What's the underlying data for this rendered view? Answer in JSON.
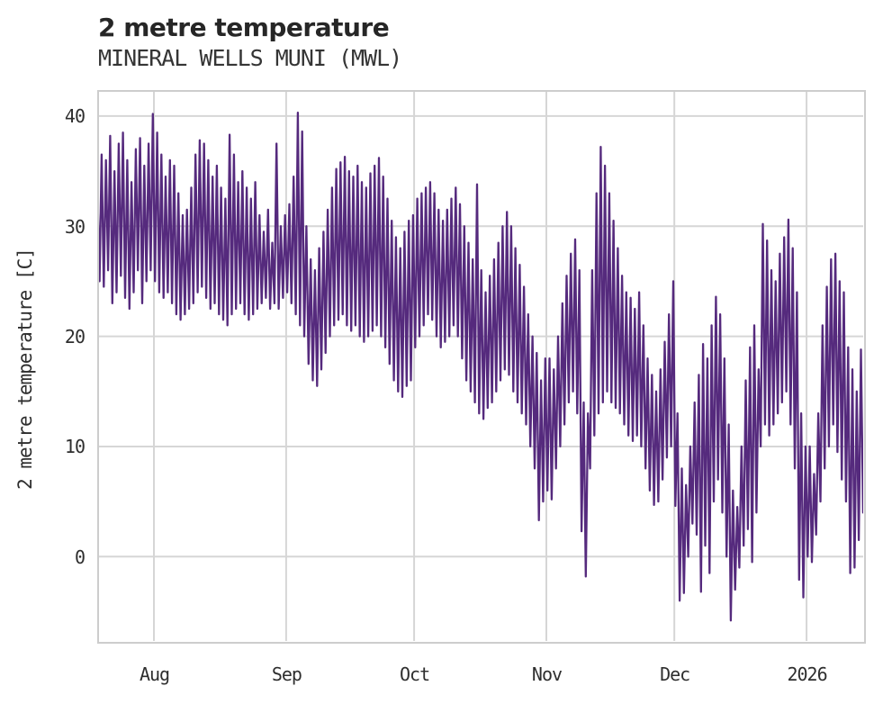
{
  "header": {
    "title": "2 metre temperature",
    "subtitle": "MINERAL WELLS MUNI (MWL)"
  },
  "chart_data": {
    "type": "line",
    "title": "2 metre temperature",
    "subtitle": "MINERAL WELLS MUNI (MWL)",
    "ylabel": "2 metre temperature [C]",
    "xlabel": "",
    "grid": true,
    "legend": "none",
    "ylim": [
      -7.66,
      42.2
    ],
    "yticks": [
      0,
      10,
      20,
      30,
      40
    ],
    "xticks": [
      {
        "label": "Aug",
        "day": 14
      },
      {
        "label": "Sep",
        "day": 45
      },
      {
        "label": "Oct",
        "day": 75
      },
      {
        "label": "Nov",
        "day": 106
      },
      {
        "label": "Dec",
        "day": 136
      },
      {
        "label": "2026",
        "day": 167
      }
    ],
    "colors": {
      "line": "#552a7d",
      "grid": "#d6d6d6",
      "frame": "#cdcdcd",
      "text": "#2e2e2e",
      "title_text": "#262626"
    },
    "daily_min": [
      24,
      25,
      24.5,
      26,
      23,
      24,
      25.5,
      23.5,
      22.5,
      24,
      26,
      23,
      25,
      26,
      25,
      24,
      23.5,
      24,
      23,
      22,
      21.5,
      22,
      22.5,
      23,
      24,
      24.5,
      23.5,
      22.5,
      23,
      22,
      21.5,
      21,
      22,
      22.5,
      23,
      22,
      21.5,
      22,
      22.5,
      23,
      23.5,
      22.5,
      23,
      22.5,
      23.5,
      24,
      23,
      22,
      21,
      20,
      17.5,
      16,
      15.5,
      17,
      18.5,
      20,
      21,
      21.5,
      22,
      21,
      20.5,
      21,
      20,
      19.5,
      20,
      20.5,
      21,
      20,
      19,
      17.5,
      16,
      15,
      14.5,
      15.5,
      16,
      19,
      20,
      21,
      22,
      21.5,
      20,
      19,
      19.5,
      20,
      21,
      20,
      18,
      16,
      15,
      14,
      13,
      12.5,
      13.5,
      14,
      15,
      16,
      17,
      16.5,
      15,
      14,
      13,
      12,
      10,
      8,
      3.3,
      5,
      6,
      5.2,
      8,
      10,
      12,
      14,
      15,
      13,
      2.3,
      -1.8,
      8,
      11,
      13,
      14,
      15,
      14,
      13.5,
      13,
      12,
      11,
      10.5,
      11,
      10,
      8,
      6,
      4.7,
      5,
      7,
      9,
      10,
      4.6,
      -4,
      -3.3,
      0,
      3,
      2,
      -3.2,
      1,
      -1.5,
      5,
      7,
      4,
      0,
      -5.8,
      -3,
      -1,
      1,
      2.5,
      -0.5,
      4,
      10,
      12,
      11,
      12,
      13,
      14,
      15,
      12,
      8,
      -2.1,
      -3.7,
      0,
      -0.5,
      2,
      5,
      8,
      10,
      12,
      9.5,
      7,
      5,
      -1.5,
      -1,
      1.5,
      4
    ],
    "daily_max": [
      33.5,
      36.5,
      36,
      38.2,
      35,
      37.5,
      38.5,
      36,
      34,
      37,
      38,
      35.5,
      37.5,
      40.2,
      38.5,
      36.5,
      34.5,
      36,
      35.5,
      33,
      31,
      31.5,
      33.5,
      36.5,
      37.8,
      37.5,
      36,
      34.5,
      35.5,
      33.5,
      32.5,
      38.3,
      36.5,
      34,
      35,
      33.5,
      32.5,
      34,
      31,
      29.5,
      31.5,
      28.5,
      37.5,
      30,
      31,
      32,
      34.5,
      40.3,
      38.6,
      30,
      27,
      26,
      28,
      29.5,
      31.5,
      33.5,
      35.2,
      35.8,
      36.3,
      35,
      34.5,
      35.5,
      34,
      33.5,
      34.8,
      35.5,
      36.2,
      34.5,
      32.5,
      30.5,
      29,
      28,
      29.5,
      30.5,
      31,
      32.5,
      33,
      33.5,
      34,
      33,
      31.5,
      30.5,
      31.5,
      32.5,
      33.5,
      32,
      30,
      28.5,
      27,
      33.8,
      26,
      24,
      25.5,
      27,
      28.5,
      30,
      31.3,
      30,
      28,
      26.5,
      24.5,
      22,
      20,
      18.5,
      16,
      18,
      18,
      17,
      20,
      23,
      25.5,
      27.5,
      28.8,
      26,
      14,
      13,
      26,
      33,
      37.2,
      35.5,
      33,
      30.5,
      28,
      25.5,
      24,
      23.5,
      22.5,
      24,
      21,
      18,
      16.5,
      15,
      17,
      19.5,
      22,
      25,
      13,
      8,
      6.5,
      10,
      14,
      16.5,
      19.3,
      18,
      21,
      23.6,
      22,
      18,
      12,
      6,
      4.5,
      10,
      16,
      19,
      21,
      17,
      30.2,
      28.7,
      26,
      25,
      27.5,
      29,
      30.6,
      28,
      24,
      13,
      10,
      10,
      7.5,
      13,
      21,
      24.5,
      27,
      27.5,
      25,
      24,
      19,
      17,
      15,
      18.8,
      16.2
    ]
  }
}
